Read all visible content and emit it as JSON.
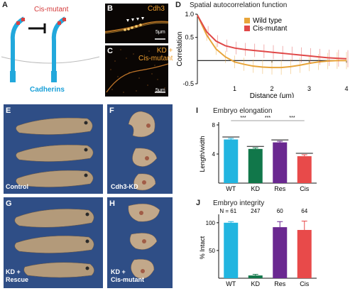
{
  "panels": {
    "A": {
      "letter": "A",
      "cis_mutant_label": "Cis-mutant",
      "cadherins_label": "Cadherins"
    },
    "B": {
      "letter": "B",
      "channel_label": "Cdh3",
      "scale_label": "5μm"
    },
    "C": {
      "letter": "C",
      "channel_label": "KD +\nCis-mutant",
      "scale_label": "5μm"
    },
    "D": {
      "letter": "D",
      "title": "Spatial autocorrelation function"
    },
    "E": {
      "letter": "E",
      "label": "Control"
    },
    "F": {
      "letter": "F",
      "label": "Cdh3-KD"
    },
    "G": {
      "letter": "G",
      "label": "KD +\nRescue"
    },
    "H": {
      "letter": "H",
      "label": "KD +\nCis-mutant"
    },
    "I": {
      "letter": "I",
      "title": "Embryo elongation"
    },
    "J": {
      "letter": "J",
      "title": "Embryo integrity"
    }
  },
  "colors": {
    "wild_type": "#e8a53a",
    "cis_mutant": "#e04848",
    "wt_bar": "#22b5e0",
    "kd_bar": "#11774a",
    "res_bar": "#6a2890",
    "cis_bar": "#e84a4a"
  },
  "chart_data": [
    {
      "type": "line",
      "panel": "D",
      "title": "Spatial autocorrelation function",
      "xlabel": "Distance (μm)",
      "ylabel": "Correlation",
      "xlim": [
        0,
        4
      ],
      "ylim": [
        -0.5,
        1.0
      ],
      "xticks": [
        "1",
        "2",
        "3",
        "4"
      ],
      "yticks": [
        "1.0",
        "0.5",
        "-0.5"
      ],
      "legend_position": "top-right",
      "series": [
        {
          "name": "Wild type",
          "color": "#e8a53a",
          "x": [
            0,
            0.25,
            0.5,
            0.75,
            1.0,
            1.25,
            1.5,
            1.75,
            2.0,
            2.25,
            2.5,
            2.75,
            3.0,
            3.25,
            3.5,
            3.75,
            4.0
          ],
          "y": [
            0.98,
            0.55,
            0.25,
            0.08,
            -0.03,
            -0.08,
            -0.12,
            -0.14,
            -0.15,
            -0.15,
            -0.13,
            -0.1,
            -0.06,
            -0.03,
            -0.01,
            0.0,
            0.0
          ]
        },
        {
          "name": "Cis-mutant",
          "color": "#e04848",
          "x": [
            0,
            0.25,
            0.5,
            0.75,
            1.0,
            1.25,
            1.5,
            1.75,
            2.0,
            2.25,
            2.5,
            2.75,
            3.0,
            3.25,
            3.5,
            3.75,
            4.0
          ],
          "y": [
            0.98,
            0.62,
            0.42,
            0.32,
            0.27,
            0.24,
            0.22,
            0.2,
            0.18,
            0.16,
            0.14,
            0.12,
            0.1,
            0.08,
            0.06,
            0.05,
            0.04
          ]
        }
      ]
    },
    {
      "type": "bar",
      "panel": "I",
      "title": "Embryo elongation",
      "ylabel": "Length/width",
      "categories": [
        "WT",
        "KD",
        "Res",
        "Cis"
      ],
      "values": [
        6.0,
        4.7,
        5.6,
        3.7
      ],
      "errors": [
        0.15,
        0.15,
        0.15,
        0.2
      ],
      "ylim": [
        0,
        8
      ],
      "yticks": [
        "8",
        "4"
      ],
      "significance": [
        "***",
        "***",
        "***"
      ]
    },
    {
      "type": "bar",
      "panel": "J",
      "title": "Embryo integrity",
      "ylabel": "% Intact",
      "categories": [
        "WT",
        "KD",
        "Res",
        "Cis"
      ],
      "values": [
        100,
        5,
        92,
        87
      ],
      "errors": [
        2,
        2,
        10,
        16
      ],
      "ylim": [
        0,
        110
      ],
      "yticks": [
        "100",
        "50"
      ],
      "n_labels": [
        "N = 61",
        "247",
        "60",
        "64"
      ]
    }
  ]
}
